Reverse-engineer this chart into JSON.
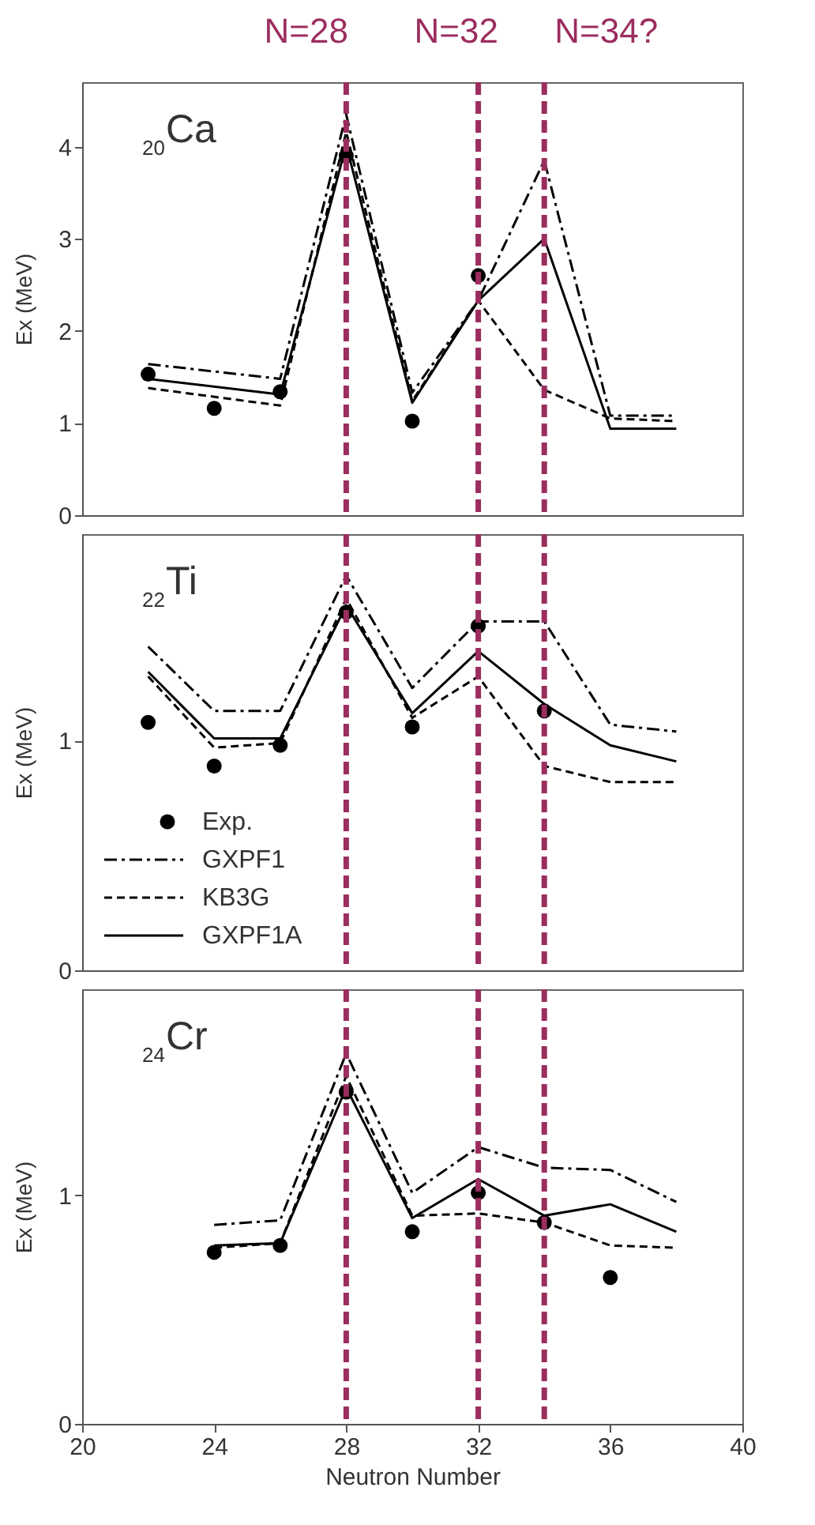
{
  "chart_data": [
    {
      "type": "line",
      "annotations": [
        "$_{20}$Ca"
      ],
      "ylabel": "Ex (MeV)",
      "xlim": [
        20,
        40
      ],
      "xticks": [
        20,
        24,
        28,
        32,
        36,
        40
      ],
      "ylim": [
        0,
        4.7
      ],
      "yticks": [
        0,
        1,
        2,
        3,
        4
      ],
      "tick_labels": "y",
      "legend": false,
      "ref_lines": [
        {
          "axis": "x",
          "value": 28,
          "label": "N=28",
          "color": "#9b2d5f",
          "line_style": "dashed"
        },
        {
          "axis": "x",
          "value": 32,
          "label": "N=32",
          "color": "#9b2d5f",
          "line_style": "dashed"
        },
        {
          "axis": "x",
          "value": 34,
          "label": "N=34?",
          "color": "#9b2d5f",
          "line_style": "dashed"
        }
      ],
      "series": [
        {
          "type": "scatter",
          "marker": "circle",
          "color": "#000000",
          "x": [
            22,
            24,
            26,
            28,
            30,
            32
          ],
          "values": [
            1.53,
            1.16,
            1.34,
            3.9,
            1.02,
            2.6
          ]
        },
        {
          "line_style": "dashdot",
          "color": "#000000",
          "x": [
            22,
            26,
            28,
            30,
            32,
            34,
            36,
            38
          ],
          "values": [
            1.64,
            1.48,
            4.35,
            1.33,
            2.33,
            3.85,
            1.08,
            1.08
          ]
        },
        {
          "line_style": "dashed",
          "color": "#000000",
          "x": [
            22,
            26,
            28,
            30,
            32,
            34,
            36,
            38
          ],
          "values": [
            1.38,
            1.19,
            4.16,
            1.24,
            2.33,
            1.36,
            1.05,
            1.02
          ]
        },
        {
          "line_style": "solid",
          "color": "#000000",
          "x": [
            22,
            26,
            28,
            30,
            32,
            34,
            36,
            38
          ],
          "values": [
            1.48,
            1.31,
            4.02,
            1.22,
            2.33,
            3.0,
            0.94,
            0.94
          ]
        }
      ]
    },
    {
      "type": "line",
      "annotations": [
        "$_{22}$Ti"
      ],
      "ylabel": "Ex (MeV)",
      "xlim": [
        20,
        40
      ],
      "xticks": [
        20,
        24,
        28,
        32,
        36,
        40
      ],
      "ylim": [
        0,
        1.9
      ],
      "yticks": [
        0,
        1
      ],
      "tick_labels": "y",
      "legend": "bottom left",
      "ref_lines": [
        {
          "axis": "x",
          "value": 28,
          "color": "#9b2d5f",
          "line_style": "dashed"
        },
        {
          "axis": "x",
          "value": 32,
          "color": "#9b2d5f",
          "line_style": "dashed"
        },
        {
          "axis": "x",
          "value": 34,
          "color": "#9b2d5f",
          "line_style": "dashed"
        }
      ],
      "series": [
        {
          "name": "Exp.",
          "type": "scatter",
          "marker": "circle",
          "color": "#000000",
          "x": [
            22,
            24,
            26,
            28,
            30,
            32,
            34
          ],
          "values": [
            1.08,
            0.89,
            0.98,
            1.56,
            1.06,
            1.5,
            1.13
          ]
        },
        {
          "name": "GXPF1",
          "line_style": "dashdot",
          "color": "#000000",
          "x": [
            22,
            24,
            26,
            28,
            30,
            32,
            34,
            36,
            38
          ],
          "values": [
            1.41,
            1.13,
            1.13,
            1.72,
            1.23,
            1.52,
            1.52,
            1.07,
            1.04
          ]
        },
        {
          "name": "KB3G",
          "line_style": "dashed",
          "color": "#000000",
          "x": [
            22,
            24,
            26,
            28,
            30,
            32,
            34,
            36,
            38
          ],
          "values": [
            1.28,
            0.97,
            0.99,
            1.62,
            1.1,
            1.28,
            0.89,
            0.82,
            0.82
          ]
        },
        {
          "name": "GXPF1A",
          "line_style": "solid",
          "color": "#000000",
          "x": [
            22,
            24,
            26,
            28,
            30,
            32,
            34,
            36,
            38
          ],
          "values": [
            1.3,
            1.01,
            1.01,
            1.59,
            1.12,
            1.39,
            1.16,
            0.98,
            0.91
          ]
        }
      ]
    },
    {
      "type": "line",
      "annotations": [
        "$_{24}$Cr"
      ],
      "xlabel": "Neutron Number",
      "ylabel": "Ex (MeV)",
      "xlim": [
        20,
        40
      ],
      "xticks": [
        20,
        24,
        28,
        32,
        36,
        40
      ],
      "ylim": [
        0,
        1.9
      ],
      "yticks": [
        0,
        1
      ],
      "legend": false,
      "ref_lines": [
        {
          "axis": "x",
          "value": 28,
          "color": "#9b2d5f",
          "line_style": "dashed"
        },
        {
          "axis": "x",
          "value": 32,
          "color": "#9b2d5f",
          "line_style": "dashed"
        },
        {
          "axis": "x",
          "value": 34,
          "color": "#9b2d5f",
          "line_style": "dashed"
        }
      ],
      "series": [
        {
          "type": "scatter",
          "marker": "circle",
          "color": "#000000",
          "x": [
            24,
            26,
            28,
            30,
            32,
            34,
            36
          ],
          "values": [
            0.75,
            0.78,
            1.45,
            0.84,
            1.01,
            0.88,
            0.64
          ]
        },
        {
          "line_style": "dashdot",
          "color": "#000000",
          "x": [
            24,
            26,
            28,
            30,
            32,
            34,
            36,
            38
          ],
          "values": [
            0.87,
            0.89,
            1.62,
            1.01,
            1.21,
            1.12,
            1.11,
            0.97
          ]
        },
        {
          "line_style": "dashed",
          "color": "#000000",
          "x": [
            24,
            26,
            28,
            30,
            32,
            34,
            36,
            38
          ],
          "values": [
            0.77,
            0.79,
            1.52,
            0.91,
            0.92,
            0.88,
            0.78,
            0.77
          ]
        },
        {
          "line_style": "solid",
          "color": "#000000",
          "x": [
            24,
            26,
            28,
            30,
            32,
            34,
            36,
            38
          ],
          "values": [
            0.78,
            0.79,
            1.47,
            0.9,
            1.07,
            0.91,
            0.96,
            0.84
          ]
        }
      ]
    }
  ]
}
